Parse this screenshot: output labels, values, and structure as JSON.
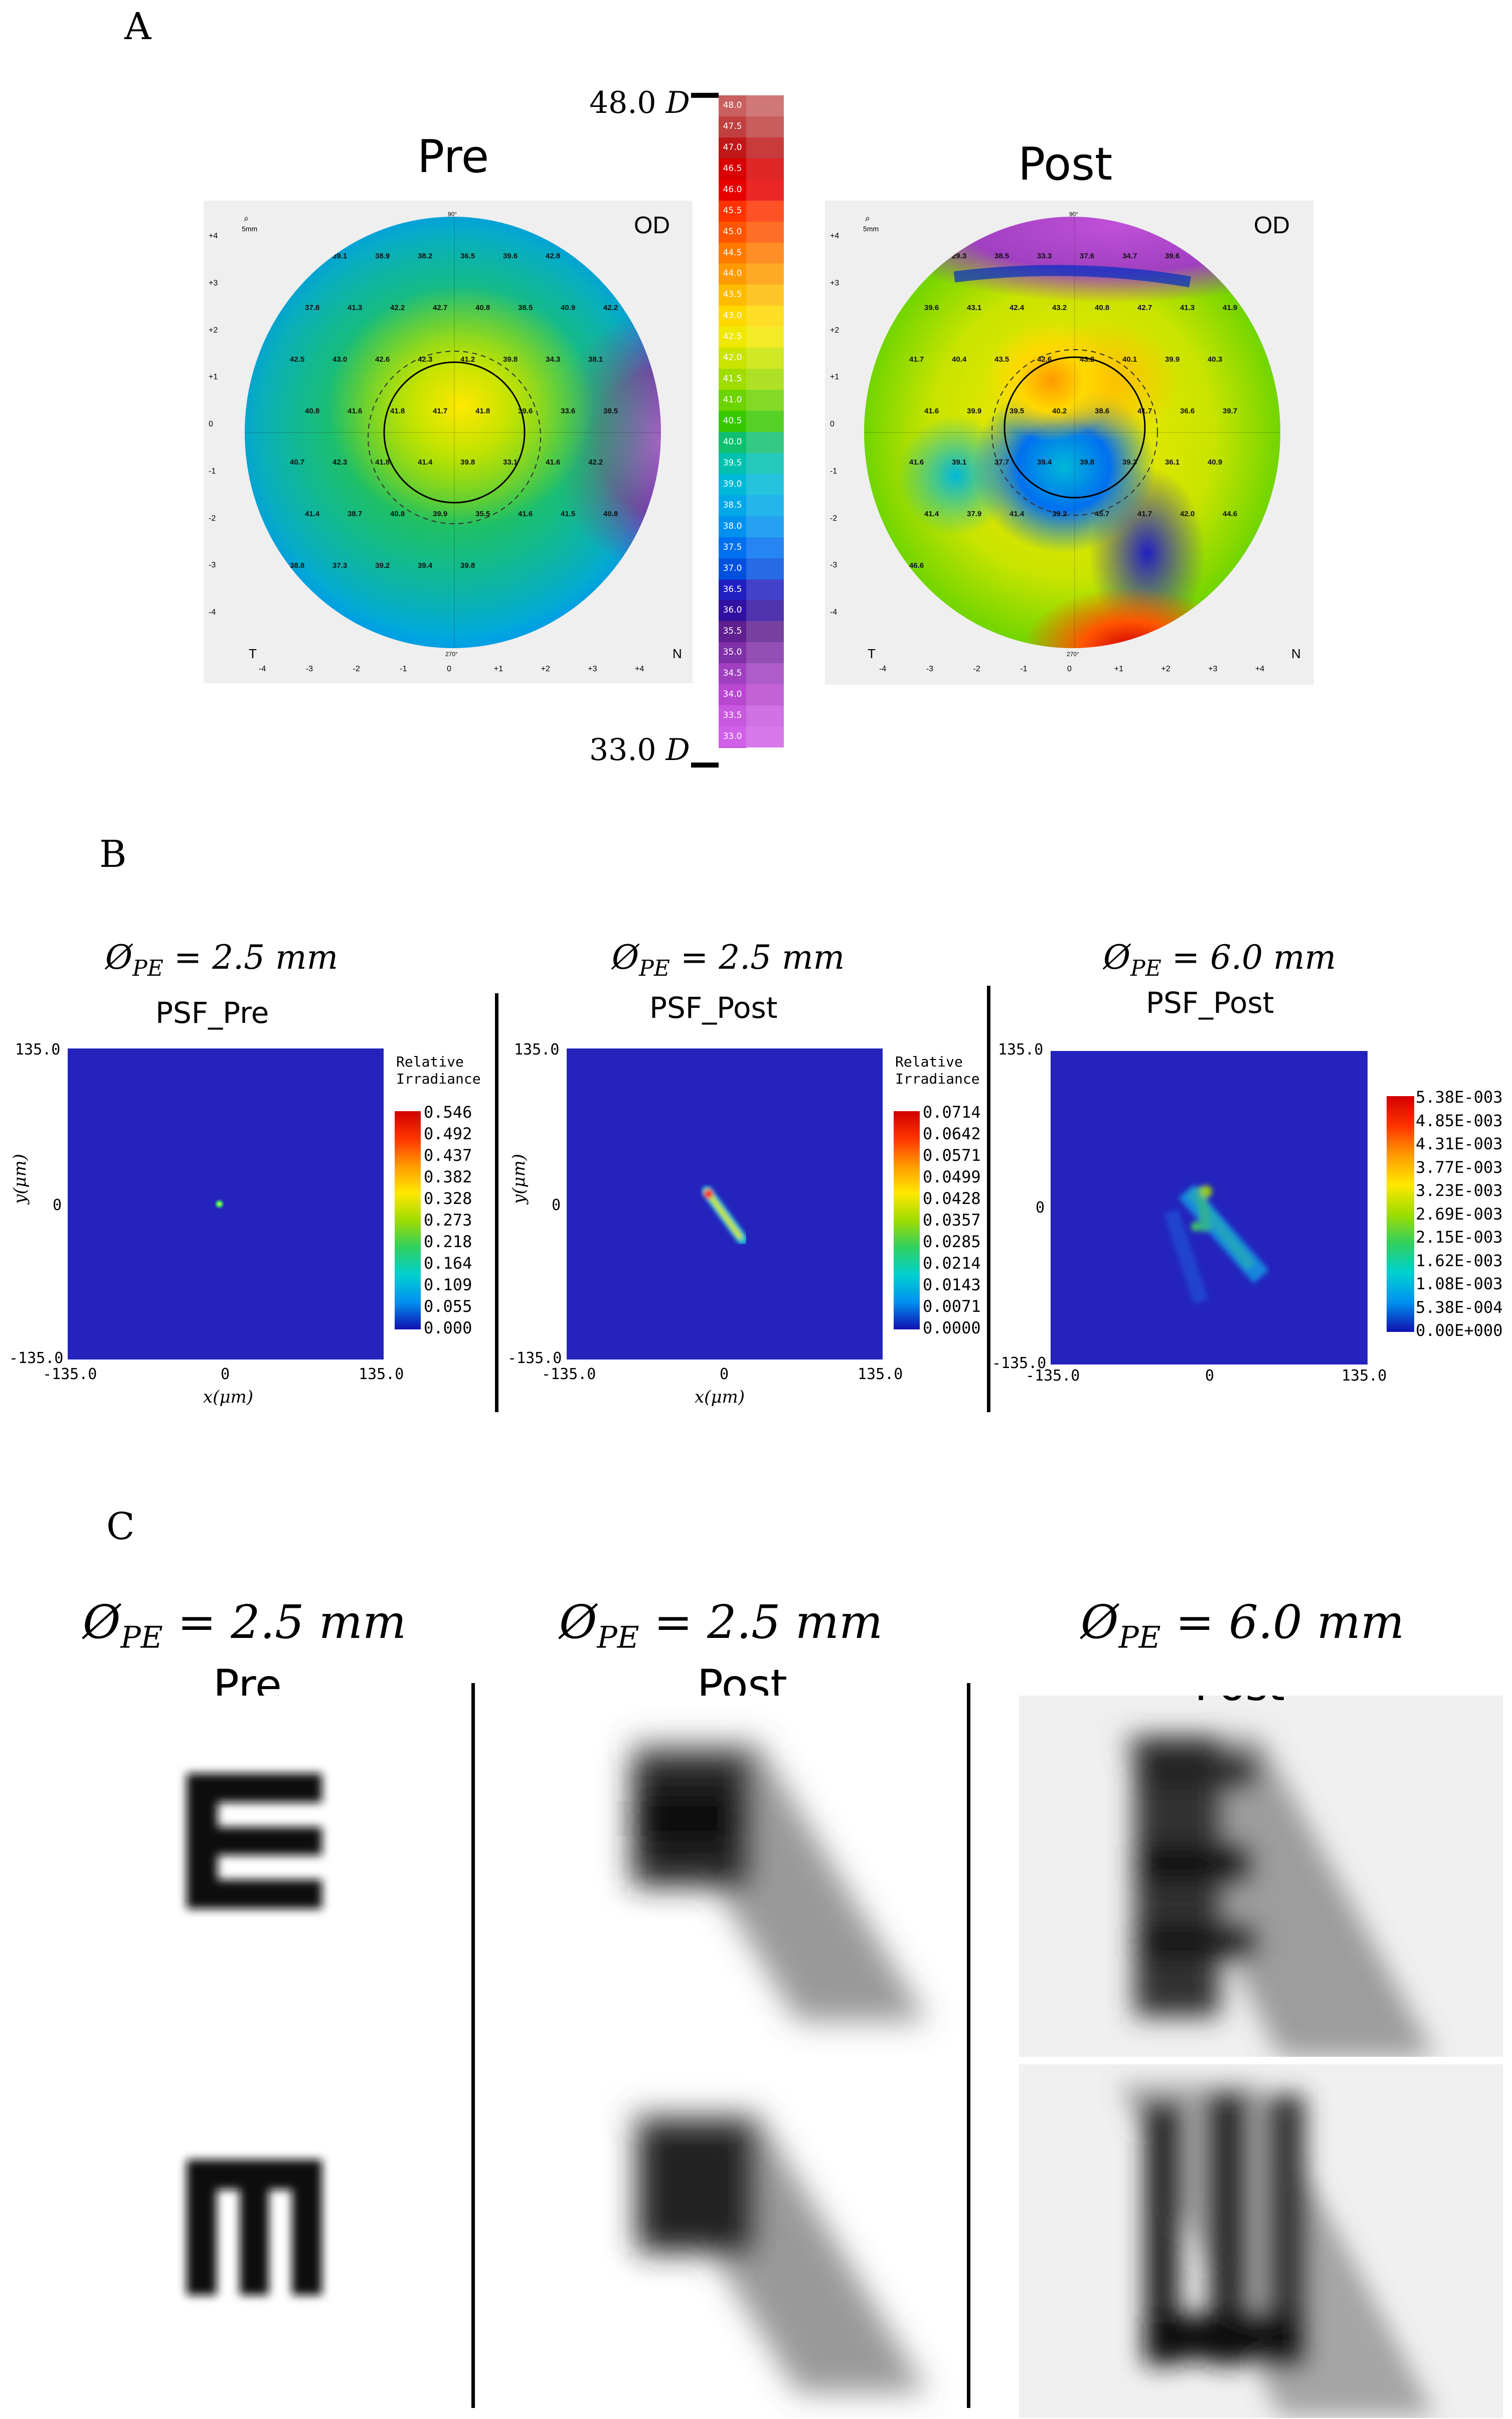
{
  "panels": {
    "A": {
      "letter": "A",
      "scale_top": "48.0",
      "scale_bottom": "33.0",
      "scale_unit": "D",
      "scale_values": [
        "48.0",
        "47.5",
        "47.0",
        "46.5",
        "46.0",
        "45.5",
        "45.0",
        "44.5",
        "44.0",
        "43.5",
        "43.0",
        "42.5",
        "42.0",
        "41.5",
        "41.0",
        "40.5",
        "40.0",
        "39.5",
        "39.0",
        "38.5",
        "38.0",
        "37.5",
        "37.0",
        "36.5",
        "36.0",
        "35.5",
        "35.0",
        "34.5",
        "34.0",
        "33.5",
        "33.0"
      ],
      "scale_colors": [
        "#c7605f",
        "#c04040",
        "#c01818",
        "#d80000",
        "#e80000",
        "#ff3300",
        "#ff5500",
        "#ff7a00",
        "#ff9a00",
        "#ffbb00",
        "#ffd800",
        "#f0e800",
        "#c8e400",
        "#a0dc00",
        "#6cd400",
        "#38c800",
        "#10c070",
        "#00c0b0",
        "#00b8d8",
        "#00a8e8",
        "#0090f0",
        "#0070f0",
        "#0050e0",
        "#2020c0",
        "#3010a0",
        "#602090",
        "#8030a8",
        "#a040c0",
        "#b848d0",
        "#c858e0",
        "#d060e8"
      ],
      "maps": [
        {
          "title": "Pre",
          "eye": "OD",
          "zoom_label": "5mm",
          "side_left": "T",
          "side_right": "N",
          "x_ticks": [
            "-4",
            "-3",
            "-2",
            "-1",
            "0",
            "+1",
            "+2",
            "+3",
            "+4"
          ],
          "y_ticks": [
            "+4",
            "+3",
            "+2",
            "+1",
            "0",
            "-1",
            "-2",
            "-3",
            "-4"
          ],
          "angle_top": "90°",
          "angle_bottom": "270°",
          "readings": [
            "39.2",
            "39.1",
            "38.9",
            "38.2",
            "36.5",
            "39.6",
            "42.8",
            "41.6",
            "37.8",
            "41.3",
            "42.2",
            "42.7",
            "40.8",
            "38.5",
            "40.9",
            "42.2",
            "42.5",
            "43.0",
            "42.6",
            "42.3",
            "41.2",
            "39.8",
            "34.3",
            "38.1",
            "40.8",
            "41.6",
            "41.8",
            "41.7",
            "41.8",
            "39.6",
            "33.6",
            "38.5",
            "40.7",
            "42.3",
            "41.8",
            "41.4",
            "39.8",
            "33.1",
            "41.6",
            "42.2",
            "41.4",
            "38.7",
            "40.8",
            "39.9",
            "35.5",
            "41.6",
            "41.5",
            "40.8",
            "38.8",
            "37.3",
            "39.2",
            "39.4",
            "39.8"
          ]
        },
        {
          "title": "Post",
          "eye": "OD",
          "zoom_label": "5mm",
          "side_left": "T",
          "side_right": "N",
          "x_ticks": [
            "-4",
            "-3",
            "-2",
            "-1",
            "0",
            "+1",
            "+2",
            "+3",
            "+4"
          ],
          "y_ticks": [
            "+4",
            "+3",
            "+2",
            "+1",
            "0",
            "-1",
            "-2",
            "-3",
            "-4"
          ],
          "angle_top": "90°",
          "angle_bottom": "270°",
          "readings": [
            "29.8",
            "29.3",
            "38.5",
            "33.3",
            "37.6",
            "34.7",
            "39.6",
            "40.8",
            "39.6",
            "43.1",
            "42.4",
            "43.2",
            "40.8",
            "42.7",
            "41.3",
            "41.9",
            "41.7",
            "40.4",
            "43.5",
            "42.6",
            "43.2",
            "40.1",
            "39.9",
            "40.3",
            "41.6",
            "39.9",
            "39.5",
            "40.2",
            "38.6",
            "41.7",
            "36.6",
            "39.7",
            "41.6",
            "39.1",
            "37.7",
            "39.4",
            "39.8",
            "39.3",
            "36.1",
            "40.9",
            "41.4",
            "37.9",
            "41.4",
            "39.2",
            "45.7",
            "41.7",
            "42.0",
            "44.6",
            "46.6"
          ]
        }
      ]
    },
    "B": {
      "letter": "B",
      "plots": [
        {
          "header": "Ø",
          "header_sub": "PE",
          "header_rest": " = 2.5 mm",
          "title": "PSF_Pre",
          "y_top": "135.0",
          "y_mid": "0",
          "y_bottom": "-135.0",
          "x_left": "-135.0",
          "x_mid": "0",
          "x_right": "135.0",
          "ylabel": "y(μm)",
          "xlabel": "x(μm)",
          "cb_title_1": "Relative",
          "cb_title_2": "Irradiance",
          "cb_values": [
            "0.546",
            "0.492",
            "0.437",
            "0.382",
            "0.328",
            "0.273",
            "0.218",
            "0.164",
            "0.109",
            "0.055",
            "0.000"
          ]
        },
        {
          "header": "Ø",
          "header_sub": "PE",
          "header_rest": " = 2.5 mm",
          "title": "PSF_Post",
          "y_top": "135.0",
          "y_mid": "0",
          "y_bottom": "-135.0",
          "x_left": "-135.0",
          "x_mid": "0",
          "x_right": "135.0",
          "ylabel": "y(μm)",
          "xlabel": "x(μm)",
          "cb_title_1": "Relative",
          "cb_title_2": "Irradiance",
          "cb_values": [
            "0.0714",
            "0.0642",
            "0.0571",
            "0.0499",
            "0.0428",
            "0.0357",
            "0.0285",
            "0.0214",
            "0.0143",
            "0.0071",
            "0.0000"
          ]
        },
        {
          "header": "Ø",
          "header_sub": "PE",
          "header_rest": " = 6.0 mm",
          "title": "PSF_Post",
          "y_top": "135.0",
          "y_mid": "0",
          "y_bottom": "-135.0",
          "x_left": "-135.0",
          "x_mid": "0",
          "x_right": "135.0",
          "cb_values": [
            "5.38E-003",
            "4.85E-003",
            "4.31E-003",
            "3.77E-003",
            "3.23E-003",
            "2.69E-003",
            "2.15E-003",
            "1.62E-003",
            "1.08E-003",
            "5.38E-004",
            "0.00E+000"
          ]
        }
      ]
    },
    "C": {
      "letter": "C",
      "columns": [
        {
          "header": "Ø",
          "header_sub": "PE",
          "header_rest": " = 2.5 mm",
          "title": "Pre"
        },
        {
          "header": "Ø",
          "header_sub": "PE",
          "header_rest": " = 2.5 mm",
          "title": "Post"
        },
        {
          "header": "Ø",
          "header_sub": "PE",
          "header_rest": " = 6.0 mm",
          "title": "Post"
        }
      ]
    }
  },
  "colors": {
    "psf_background": "#2424bd",
    "jet_top": "#d00000",
    "jet_bottom": "#1010b0"
  }
}
